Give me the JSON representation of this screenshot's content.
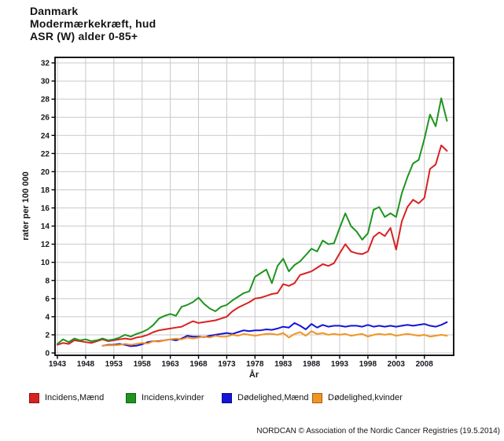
{
  "title": {
    "line1": "Danmark",
    "line2": "Modermærkekræft, hud",
    "line3": "ASR (W) alder 0-85+"
  },
  "footer": "NORDCAN © Association of the Nordic Cancer Registries (19.5.2014)",
  "chart_data": {
    "type": "line",
    "title": "Danmark — Modermærkekræft, hud — ASR (W) alder 0-85+",
    "xlabel": "År",
    "ylabel": "rater per 100 000",
    "ylim": [
      0,
      32
    ],
    "yticks": [
      0,
      2,
      4,
      6,
      8,
      10,
      12,
      14,
      16,
      18,
      20,
      22,
      24,
      26,
      28,
      30,
      32
    ],
    "xticks": [
      1943,
      1948,
      1953,
      1958,
      1963,
      1968,
      1973,
      1978,
      1983,
      1988,
      1993,
      1998,
      2003,
      2008
    ],
    "x_range": [
      1943,
      2012
    ],
    "grid": true,
    "legend_position": "bottom",
    "colors": {
      "grid": "#c9c9c9",
      "frame": "#000000",
      "tick_text": "#17171f"
    },
    "series": [
      {
        "name": "Incidens,Mænd",
        "color": "#d92121",
        "start_year": 1943,
        "values": [
          0.9,
          1.1,
          1.0,
          1.4,
          1.3,
          1.2,
          1.1,
          1.3,
          1.5,
          1.3,
          1.4,
          1.5,
          1.6,
          1.5,
          1.7,
          1.8,
          2.0,
          2.3,
          2.5,
          2.6,
          2.7,
          2.8,
          2.9,
          3.2,
          3.5,
          3.3,
          3.4,
          3.5,
          3.6,
          3.8,
          4.0,
          4.6,
          5.0,
          5.3,
          5.6,
          6.0,
          6.1,
          6.3,
          6.5,
          6.6,
          7.6,
          7.4,
          7.7,
          8.6,
          8.8,
          9.0,
          9.4,
          9.8,
          9.6,
          9.9,
          11.0,
          12.0,
          11.2,
          11.0,
          10.9,
          11.2,
          12.8,
          13.3,
          12.9,
          13.8,
          11.4,
          14.5,
          16.1,
          16.9,
          16.5,
          17.1,
          20.3,
          20.8,
          22.9,
          22.3
        ]
      },
      {
        "name": "Incidens,kvinder",
        "color": "#1f941f",
        "start_year": 1943,
        "values": [
          1.0,
          1.5,
          1.2,
          1.6,
          1.4,
          1.5,
          1.3,
          1.4,
          1.6,
          1.4,
          1.5,
          1.7,
          2.0,
          1.8,
          2.1,
          2.3,
          2.6,
          3.1,
          3.8,
          4.1,
          4.3,
          4.1,
          5.1,
          5.3,
          5.6,
          6.1,
          5.4,
          4.9,
          4.6,
          5.1,
          5.3,
          5.8,
          6.2,
          6.6,
          6.8,
          8.4,
          8.8,
          9.2,
          7.7,
          9.6,
          10.4,
          9.0,
          9.7,
          10.1,
          10.8,
          11.5,
          11.2,
          12.4,
          12.0,
          12.1,
          13.8,
          15.4,
          14.0,
          13.4,
          12.5,
          13.2,
          15.8,
          16.1,
          15.0,
          15.4,
          15.0,
          17.6,
          19.4,
          20.9,
          21.3,
          23.6,
          26.3,
          25.0,
          28.1,
          25.6
        ]
      },
      {
        "name": "Dødelighed,Mænd",
        "color": "#1414d6",
        "start_year": 1951,
        "values": [
          0.8,
          0.9,
          0.9,
          1.0,
          0.9,
          0.75,
          0.8,
          0.95,
          1.2,
          1.3,
          1.3,
          1.4,
          1.5,
          1.4,
          1.6,
          1.9,
          1.8,
          1.8,
          1.75,
          1.9,
          2.0,
          2.1,
          2.2,
          2.1,
          2.3,
          2.5,
          2.4,
          2.5,
          2.5,
          2.6,
          2.55,
          2.7,
          2.9,
          2.8,
          3.3,
          3.0,
          2.6,
          3.2,
          2.8,
          3.1,
          2.9,
          3.0,
          3.0,
          2.9,
          3.0,
          3.0,
          2.9,
          3.1,
          2.9,
          3.0,
          2.9,
          3.0,
          2.9,
          3.0,
          3.1,
          3.0,
          3.1,
          3.2,
          3.0,
          2.9,
          3.1,
          3.4
        ]
      },
      {
        "name": "Dødelighed,kvinder",
        "color": "#f29422",
        "start_year": 1951,
        "values": [
          0.8,
          0.85,
          0.85,
          0.9,
          1.0,
          0.9,
          1.0,
          1.1,
          1.05,
          1.3,
          1.25,
          1.4,
          1.5,
          1.6,
          1.5,
          1.7,
          1.6,
          1.7,
          1.8,
          1.7,
          1.9,
          1.8,
          1.8,
          2.0,
          1.9,
          2.1,
          2.0,
          1.9,
          2.0,
          2.1,
          2.1,
          2.0,
          2.2,
          1.7,
          2.1,
          2.3,
          1.9,
          2.4,
          2.1,
          2.2,
          2.0,
          2.1,
          2.0,
          2.1,
          1.9,
          2.0,
          2.1,
          1.8,
          2.0,
          2.1,
          2.0,
          2.1,
          1.9,
          2.0,
          2.1,
          2.0,
          1.9,
          2.0,
          1.8,
          1.9,
          2.0,
          1.9
        ]
      }
    ]
  },
  "legend": {
    "positions_x": [
      37,
      160,
      282,
      397
    ]
  }
}
